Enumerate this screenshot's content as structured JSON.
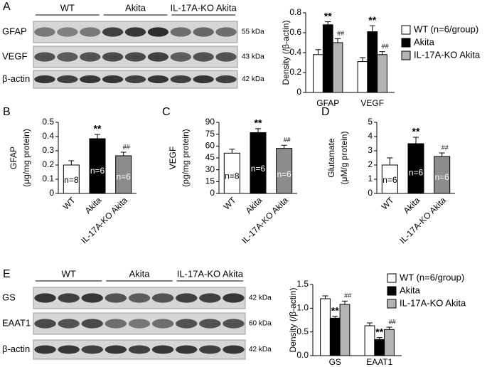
{
  "blots": [
    {
      "panel": "A",
      "groups": [
        "WT",
        "Akita",
        "IL-17A-KO Akita"
      ],
      "rows": [
        {
          "label": "GFAP",
          "kda": "55 kDa"
        },
        {
          "label": "VEGF",
          "kda": "43 kDa"
        },
        {
          "label": "β-actin",
          "kda": "42 kDa"
        }
      ]
    },
    {
      "panel": "E",
      "groups": [
        "WT",
        "Akita",
        "IL-17A-KO Akita"
      ],
      "rows": [
        {
          "label": "GS",
          "kda": "42 kDa"
        },
        {
          "label": "EAAT1",
          "kda": "60 kDa"
        },
        {
          "label": "β-actin",
          "kda": "42 kDa"
        }
      ]
    }
  ],
  "chart_data": [
    {
      "type": "bar",
      "y_label": [
        "Density (/β-actin)"
      ],
      "categories": [
        "GFAP",
        "VEGF"
      ],
      "series": [
        {
          "name": "WT  (n=6/group)",
          "color": "#ffffff",
          "values": [
            0.38,
            0.31
          ],
          "errors": [
            0.05,
            0.04
          ]
        },
        {
          "name": "Akita",
          "color": "#000000",
          "values": [
            0.68,
            0.61
          ],
          "errors": [
            0.03,
            0.06
          ],
          "significance": [
            "**",
            "**"
          ]
        },
        {
          "name": "IL-17A-KO Akita",
          "color": "#b4b4b4",
          "values": [
            0.5,
            0.38
          ],
          "errors": [
            0.04,
            0.03
          ],
          "significance": [
            "##",
            "##"
          ]
        }
      ],
      "ylim": [
        0,
        0.8
      ],
      "yticks": [
        0,
        0.2,
        0.4,
        0.6,
        0.8
      ],
      "legend": "right"
    },
    {
      "type": "bar",
      "panel": "B",
      "y_label": [
        "GFAP",
        "(μg/mg protein)"
      ],
      "categories": [
        "WT",
        "Akita",
        "IL-17A-KO Akita"
      ],
      "values": [
        0.2,
        0.385,
        0.265
      ],
      "errors": [
        0.03,
        0.03,
        0.025
      ],
      "colors": [
        "#ffffff",
        "#000000",
        "#8c8c8c"
      ],
      "bar_labels": [
        "n=8",
        "n=6",
        "n=6"
      ],
      "significance": [
        null,
        "**",
        "##"
      ],
      "ylim": [
        0,
        0.5
      ],
      "yticks": [
        0,
        0.1,
        0.2,
        0.3,
        0.4,
        0.5
      ]
    },
    {
      "type": "bar",
      "panel": "C",
      "y_label": [
        "VEGF",
        "(pg/mg protein)"
      ],
      "categories": [
        "WT",
        "Akita",
        "IL-17A-KO Akita"
      ],
      "values": [
        51,
        77,
        57
      ],
      "errors": [
        5,
        5,
        4
      ],
      "colors": [
        "#ffffff",
        "#000000",
        "#8c8c8c"
      ],
      "bar_labels": [
        "n=8",
        "n=6",
        "n=6"
      ],
      "significance": [
        null,
        "**",
        "##"
      ],
      "ylim": [
        0,
        90
      ],
      "yticks": [
        0,
        15,
        30,
        45,
        60,
        75,
        90
      ]
    },
    {
      "type": "bar",
      "panel": "D",
      "y_label": [
        "Glutamate",
        "(μM/g protein)"
      ],
      "categories": [
        "WT",
        "Akita",
        "IL-17A-KO Akita"
      ],
      "values": [
        2.0,
        3.5,
        2.6
      ],
      "errors": [
        0.5,
        0.45,
        0.25
      ],
      "colors": [
        "#ffffff",
        "#000000",
        "#8c8c8c"
      ],
      "bar_labels": [
        "n=6",
        "n=6",
        "n=6"
      ],
      "significance": [
        null,
        "**",
        "##"
      ],
      "ylim": [
        0,
        5
      ],
      "yticks": [
        0,
        1,
        2,
        3,
        4,
        5
      ]
    },
    {
      "type": "bar",
      "y_label": [
        "Density (/β-actin)"
      ],
      "categories": [
        "GS",
        "EAAT1"
      ],
      "series": [
        {
          "name": "WT  (n=6/group)",
          "color": "#ffffff",
          "values": [
            1.2,
            0.63
          ],
          "errors": [
            0.06,
            0.06
          ]
        },
        {
          "name": "Akita",
          "color": "#000000",
          "values": [
            0.79,
            0.34
          ],
          "errors": [
            0.04,
            0.04
          ],
          "significance": [
            "**",
            "**"
          ]
        },
        {
          "name": "IL-17A-KO Akita",
          "color": "#b4b4b4",
          "values": [
            1.08,
            0.55
          ],
          "errors": [
            0.07,
            0.05
          ],
          "significance": [
            "##",
            "##"
          ]
        }
      ],
      "ylim": [
        0,
        1.5
      ],
      "yticks": [
        {
          "value": 0,
          "label": "0.0"
        },
        {
          "value": 0.5,
          "label": "0.5"
        },
        {
          "value": 1,
          "label": "1.0"
        },
        {
          "value": 1.5,
          "label": "1.5"
        }
      ],
      "legend": "right"
    }
  ]
}
